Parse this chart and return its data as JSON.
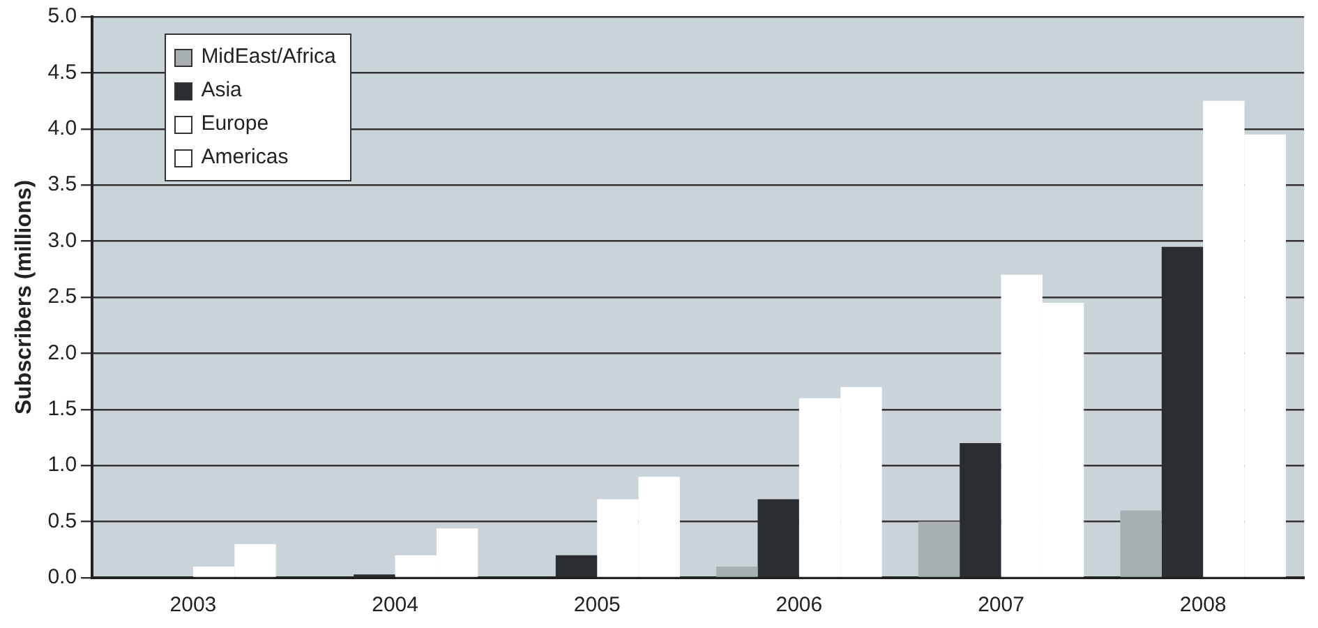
{
  "chart_data": {
    "type": "bar",
    "ylabel": "Subscribers (millions)",
    "categories": [
      "2003",
      "2004",
      "2005",
      "2006",
      "2007",
      "2008"
    ],
    "series": [
      {
        "name": "MidEast/Africa",
        "color": "#a8b0b4",
        "values": [
          0,
          0,
          0,
          0.1,
          0.5,
          0.6
        ]
      },
      {
        "name": "Asia",
        "color": "#2a2e33",
        "values": [
          0,
          0.03,
          0.2,
          0.7,
          1.2,
          2.95
        ]
      },
      {
        "name": "Europe",
        "color": "#ffffff",
        "values": [
          0.1,
          0.2,
          0.7,
          1.6,
          2.7,
          4.25
        ]
      },
      {
        "name": "Americas",
        "color": "#ffffff",
        "values": [
          0.3,
          0.44,
          0.9,
          1.7,
          2.45,
          3.95
        ]
      }
    ],
    "ylim": [
      0,
      5
    ],
    "yticks": [
      {
        "value": 0,
        "label": "0.0"
      },
      {
        "value": 0.5,
        "label": "0.5"
      },
      {
        "value": 1,
        "label": "1.0"
      },
      {
        "value": 1.5,
        "label": "1.5"
      },
      {
        "value": 2,
        "label": "2.0"
      },
      {
        "value": 2.5,
        "label": "2.5"
      },
      {
        "value": 3,
        "label": "3.0"
      },
      {
        "value": 3.5,
        "label": "3.5"
      },
      {
        "value": 4,
        "label": "4.0"
      },
      {
        "value": 4.5,
        "label": "4.5"
      },
      {
        "value": 5,
        "label": "5.0"
      }
    ],
    "grid": "y",
    "legend": "top left"
  }
}
